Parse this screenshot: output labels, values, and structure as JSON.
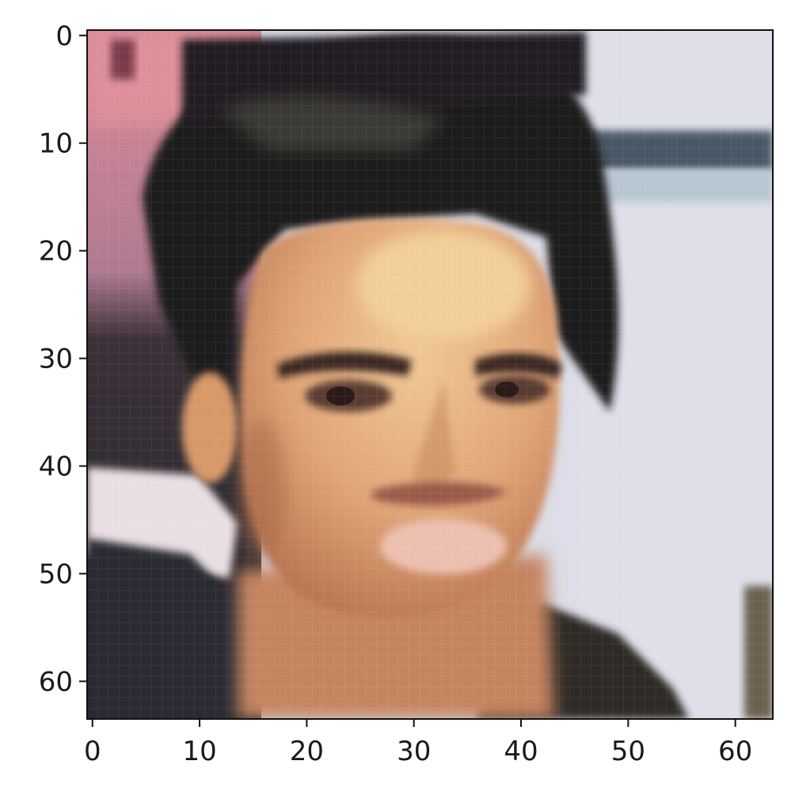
{
  "figure": {
    "kind": "pixel image plot (imshow)",
    "subject": "low-resolution (64x64) portrait photo of a young man with dark tousled hair",
    "image_resolution": [
      64,
      64
    ]
  },
  "chart_data": {
    "type": "heatmap",
    "title": "",
    "xlabel": "",
    "ylabel": "",
    "xlim": [
      -0.5,
      63.5
    ],
    "ylim": [
      63.5,
      -0.5
    ],
    "x_ticks": [
      0,
      10,
      20,
      30,
      40,
      50,
      60
    ],
    "y_ticks": [
      0,
      10,
      20,
      30,
      40,
      50,
      60
    ],
    "x_tick_labels": [
      "0",
      "10",
      "20",
      "30",
      "40",
      "50",
      "60"
    ],
    "y_tick_labels": [
      "0",
      "10",
      "20",
      "30",
      "40",
      "50",
      "60"
    ],
    "grid": false,
    "legend": "none",
    "colors": {
      "hair": "#1e1c1f",
      "skin": "#e0a577",
      "skin_highlight": "#f0c896",
      "background_right": "#dcdde8",
      "background_top_left": "#d98a96",
      "lips": "#e8b8a8",
      "clothing": "#2a2a30"
    }
  }
}
